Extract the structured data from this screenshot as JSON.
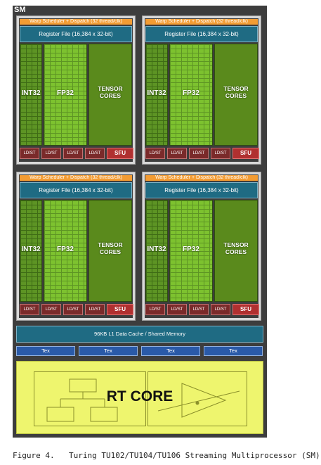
{
  "sm_label": "SM",
  "partitions": [
    {
      "warp": "Warp Scheduler + Dispatch (32 thread/clk)",
      "register_file": "Register File (16,384 x 32-bit)",
      "int": "INT32",
      "fp": "FP32",
      "tensor_line1": "TENSOR",
      "tensor_line2": "CORES",
      "ldst": [
        "LD/ST",
        "LD/ST",
        "LD/ST",
        "LD/ST"
      ],
      "sfu": "SFU"
    },
    {
      "warp": "Warp Scheduler + Dispatch (32 thread/clk)",
      "register_file": "Register File (16,384 x 32-bit)",
      "int": "INT32",
      "fp": "FP32",
      "tensor_line1": "TENSOR",
      "tensor_line2": "CORES",
      "ldst": [
        "LD/ST",
        "LD/ST",
        "LD/ST",
        "LD/ST"
      ],
      "sfu": "SFU"
    },
    {
      "warp": "Warp Scheduler + Dispatch (32 thread/clk)",
      "register_file": "Register File (16,384 x 32-bit)",
      "int": "INT32",
      "fp": "FP32",
      "tensor_line1": "TENSOR",
      "tensor_line2": "CORES",
      "ldst": [
        "LD/ST",
        "LD/ST",
        "LD/ST",
        "LD/ST"
      ],
      "sfu": "SFU"
    },
    {
      "warp": "Warp Scheduler + Dispatch (32 thread/clk)",
      "register_file": "Register File (16,384 x 32-bit)",
      "int": "INT32",
      "fp": "FP32",
      "tensor_line1": "TENSOR",
      "tensor_line2": "CORES",
      "ldst": [
        "LD/ST",
        "LD/ST",
        "LD/ST",
        "LD/ST"
      ],
      "sfu": "SFU"
    }
  ],
  "l1_cache": "96KB L1 Data Cache / Shared Memory",
  "tex_units": [
    "Tex",
    "Tex",
    "Tex",
    "Tex"
  ],
  "rt_core": "RT CORE",
  "caption": {
    "number": "Figure 4.",
    "text": "Turing TU102/TU104/TU106 Streaming Multiprocessor (SM)"
  },
  "colors": {
    "sm_background": "#3d3d3d",
    "warp_scheduler": "#f39c33",
    "register_file": "#1f6b83",
    "int32": "#5d9424",
    "fp32": "#7dc22f",
    "tensor": "#5a8a1c",
    "ldst": "#7a2a2a",
    "sfu": "#b03030",
    "tex": "#2a5aa8",
    "rt_core": "#eef56e"
  }
}
